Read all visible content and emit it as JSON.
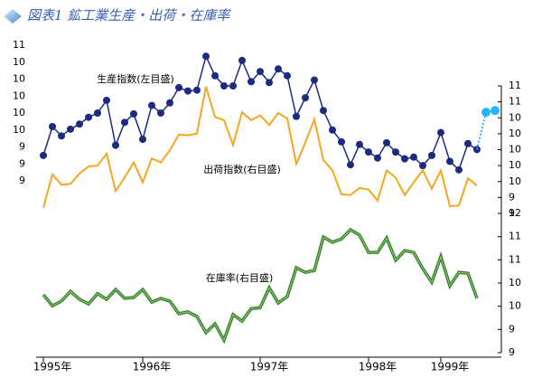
{
  "chart_data": {
    "type": "line",
    "title": "図表1 鉱工業生産・出荷・在庫率",
    "categories": [
      null,
      "1995年",
      null,
      null,
      null,
      null,
      null,
      null,
      null,
      null,
      null,
      null,
      "1996年",
      null,
      null,
      null,
      null,
      null,
      null,
      null,
      null,
      null,
      null,
      null,
      null,
      "1997年",
      null,
      null,
      null,
      null,
      null,
      null,
      null,
      null,
      null,
      null,
      null,
      "1998年",
      null,
      null,
      null,
      null,
      null,
      null,
      null,
      "1999年",
      null,
      null,
      null,
      null,
      null
    ],
    "ylim": [
      9.4,
      11.0
    ],
    "yticks": [
      {
        "value": 11.0,
        "label": "11"
      },
      {
        "value": 10.8,
        "label": "10"
      },
      {
        "value": 10.6,
        "label": "10"
      },
      {
        "value": 10.4,
        "label": "10"
      },
      {
        "value": 10.2,
        "label": "10"
      },
      {
        "value": 10.0,
        "label": "10"
      },
      {
        "value": 9.8,
        "label": "9"
      },
      {
        "value": 9.6,
        "label": "9"
      },
      {
        "value": 9.4,
        "label": "9"
      }
    ],
    "y2lim": [
      9.6,
      11.2
    ],
    "y2ticks": [
      {
        "value": 11.2,
        "label": "11"
      },
      {
        "value": 11.0,
        "label": "11"
      },
      {
        "value": 10.8,
        "label": "10"
      },
      {
        "value": 10.6,
        "label": "10"
      },
      {
        "value": 10.4,
        "label": "10"
      },
      {
        "value": 10.2,
        "label": "10"
      },
      {
        "value": 10.0,
        "label": "10"
      },
      {
        "value": 9.8,
        "label": "9"
      },
      {
        "value": 9.6,
        "label": "9"
      }
    ],
    "y3lim": [
      9,
      12
    ],
    "y3ticks": [
      12,
      {
        "value": 11.5,
        "label": "11"
      },
      11,
      {
        "value": 10.5,
        "label": "10"
      },
      10,
      {
        "value": 9.5,
        "label": "9"
      },
      9
    ],
    "series": [
      {
        "name": "生産指数(左目盛)",
        "color": "#1c2a80",
        "axis": "y",
        "markers": true,
        "values": [
          9.7,
          10.04,
          9.93,
          10.01,
          10.07,
          10.15,
          10.2,
          10.35,
          9.82,
          10.09,
          10.19,
          9.89,
          10.29,
          10.2,
          10.32,
          10.5,
          10.46,
          10.47,
          10.87,
          10.64,
          10.52,
          10.52,
          10.82,
          10.57,
          10.69,
          10.56,
          10.72,
          10.64,
          10.16,
          10.38,
          10.59,
          10.23,
          10.0,
          9.86,
          9.59,
          9.83,
          9.74,
          9.67,
          9.85,
          9.74,
          9.66,
          9.68,
          9.58,
          9.7,
          9.97,
          9.63,
          9.53,
          9.84,
          9.77,
          null,
          null
        ]
      },
      {
        "name": "出荷指数(右目盛)",
        "color": "#f5a623",
        "axis": "y2",
        "values": [
          9.67,
          10.09,
          9.96,
          9.97,
          10.1,
          10.19,
          10.2,
          10.35,
          9.88,
          10.05,
          10.24,
          9.99,
          10.29,
          10.24,
          10.39,
          10.59,
          10.58,
          10.6,
          11.19,
          10.81,
          10.77,
          10.46,
          10.87,
          10.77,
          10.83,
          10.71,
          10.86,
          10.79,
          10.22,
          10.49,
          10.78,
          10.27,
          10.14,
          9.84,
          9.83,
          9.92,
          9.9,
          9.76,
          10.14,
          10.05,
          9.83,
          9.99,
          10.14,
          9.91,
          10.14,
          9.69,
          9.7,
          10.04,
          9.95,
          null,
          null
        ]
      },
      {
        "name": "在庫率(右目盛)",
        "color": "#2e7d32",
        "axis": "y3",
        "double": true,
        "values": [
          10.25,
          10.01,
          10.11,
          10.32,
          10.15,
          10.05,
          10.27,
          10.15,
          10.36,
          10.17,
          10.19,
          10.36,
          10.09,
          10.17,
          10.11,
          9.84,
          9.88,
          9.78,
          9.43,
          9.62,
          9.27,
          9.82,
          9.68,
          9.95,
          9.97,
          10.4,
          10.07,
          10.21,
          10.83,
          10.73,
          10.77,
          11.49,
          11.38,
          11.45,
          11.65,
          11.53,
          11.16,
          11.16,
          11.47,
          10.99,
          11.2,
          11.16,
          10.81,
          10.52,
          11.07,
          10.44,
          10.73,
          10.71,
          10.17,
          null,
          null
        ]
      },
      {
        "color": "#29b6f6",
        "axis": "y",
        "dotted": true,
        "markers": true,
        "values": [
          null,
          null,
          null,
          null,
          null,
          null,
          null,
          null,
          null,
          null,
          null,
          null,
          null,
          null,
          null,
          null,
          null,
          null,
          null,
          null,
          null,
          null,
          null,
          null,
          null,
          null,
          null,
          null,
          null,
          null,
          null,
          null,
          null,
          null,
          null,
          null,
          null,
          null,
          null,
          null,
          null,
          null,
          null,
          null,
          null,
          null,
          null,
          null,
          null,
          10.21,
          10.23
        ]
      }
    ]
  }
}
